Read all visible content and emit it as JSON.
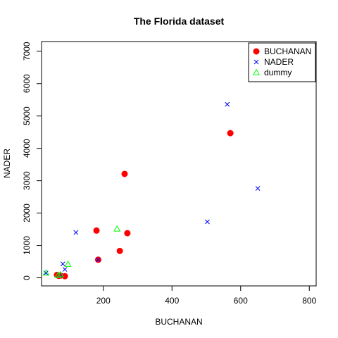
{
  "chart_data": {
    "type": "scatter",
    "title": "The Florida dataset",
    "xlabel": "BUCHANAN",
    "ylabel": "NADER",
    "xlim": [
      20,
      820
    ],
    "ylim": [
      -250,
      7300
    ],
    "xticks": [
      200,
      400,
      600,
      800
    ],
    "yticks": [
      0,
      1000,
      2000,
      3000,
      4000,
      5000,
      6000,
      7000
    ],
    "legend_position": "top-right",
    "series": [
      {
        "name": "BUCHANAN",
        "marker": "filled-circle",
        "color": "#ff0000",
        "points": [
          {
            "x": 570,
            "y": 4470
          },
          {
            "x": 262,
            "y": 3210
          },
          {
            "x": 180,
            "y": 1460
          },
          {
            "x": 270,
            "y": 1380
          },
          {
            "x": 248,
            "y": 830
          },
          {
            "x": 185,
            "y": 560
          },
          {
            "x": 65,
            "y": 90
          },
          {
            "x": 75,
            "y": 70
          },
          {
            "x": 88,
            "y": 50
          },
          {
            "x": 70,
            "y": 60
          }
        ]
      },
      {
        "name": "NADER",
        "marker": "cross",
        "color": "#0000ff",
        "points": [
          {
            "x": 561,
            "y": 5360
          },
          {
            "x": 650,
            "y": 2760
          },
          {
            "x": 503,
            "y": 1730
          },
          {
            "x": 120,
            "y": 1400
          },
          {
            "x": 185,
            "y": 560
          },
          {
            "x": 82,
            "y": 430
          },
          {
            "x": 88,
            "y": 260
          },
          {
            "x": 33,
            "y": 150
          },
          {
            "x": 75,
            "y": 70
          }
        ]
      },
      {
        "name": "dummy",
        "marker": "open-triangle",
        "color": "#00ff00",
        "points": [
          {
            "x": 240,
            "y": 1510
          },
          {
            "x": 97,
            "y": 420
          },
          {
            "x": 33,
            "y": 150
          },
          {
            "x": 75,
            "y": 100
          },
          {
            "x": 68,
            "y": 80
          }
        ]
      }
    ]
  }
}
